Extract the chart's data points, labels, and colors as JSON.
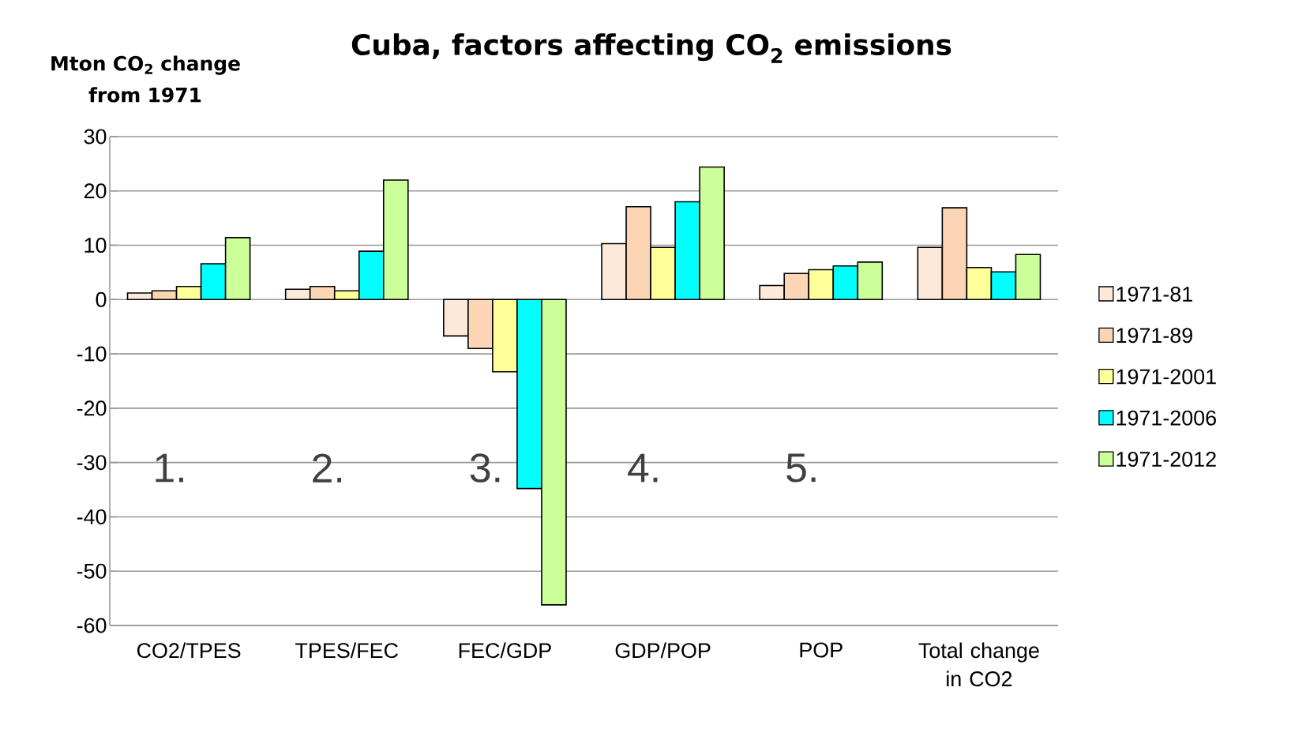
{
  "chart_data": {
    "type": "bar",
    "title": "Cuba, factors affecting CO$_{2}$ emissions",
    "ylabel": "Mton CO$_{2}$ change from 1971",
    "categories": [
      "CO2/TPES",
      "TPES/FEC",
      "FEC/GDP",
      "GDP/POP",
      "POP",
      "Total change in CO2"
    ],
    "series": [
      {
        "name": "1971-81",
        "color": "#fde9d9",
        "values": [
          1.2,
          1.9,
          -6.7,
          10.3,
          2.6,
          9.6
        ]
      },
      {
        "name": "1971-89",
        "color": "#fcd5b4",
        "values": [
          1.6,
          2.4,
          -9.0,
          17.1,
          4.8,
          16.9
        ]
      },
      {
        "name": "1971-2001",
        "color": "#ffff99",
        "values": [
          2.4,
          1.6,
          -13.3,
          9.6,
          5.5,
          5.9
        ]
      },
      {
        "name": "1971-2006",
        "color": "#00ffff",
        "values": [
          6.6,
          8.9,
          -34.8,
          18.0,
          6.2,
          5.1
        ]
      },
      {
        "name": "1971-2012",
        "color": "#ccff99",
        "values": [
          11.4,
          22.0,
          -56.2,
          24.4,
          6.9,
          8.3
        ]
      }
    ],
    "annotations": [
      "1.",
      "2.",
      "3.",
      "4.",
      "5."
    ],
    "ylim": [
      -60,
      30
    ],
    "yticks": [
      -60,
      -50,
      -40,
      -30,
      -20,
      -10,
      0,
      10,
      20,
      30
    ],
    "grid": "y",
    "legend": "right"
  }
}
